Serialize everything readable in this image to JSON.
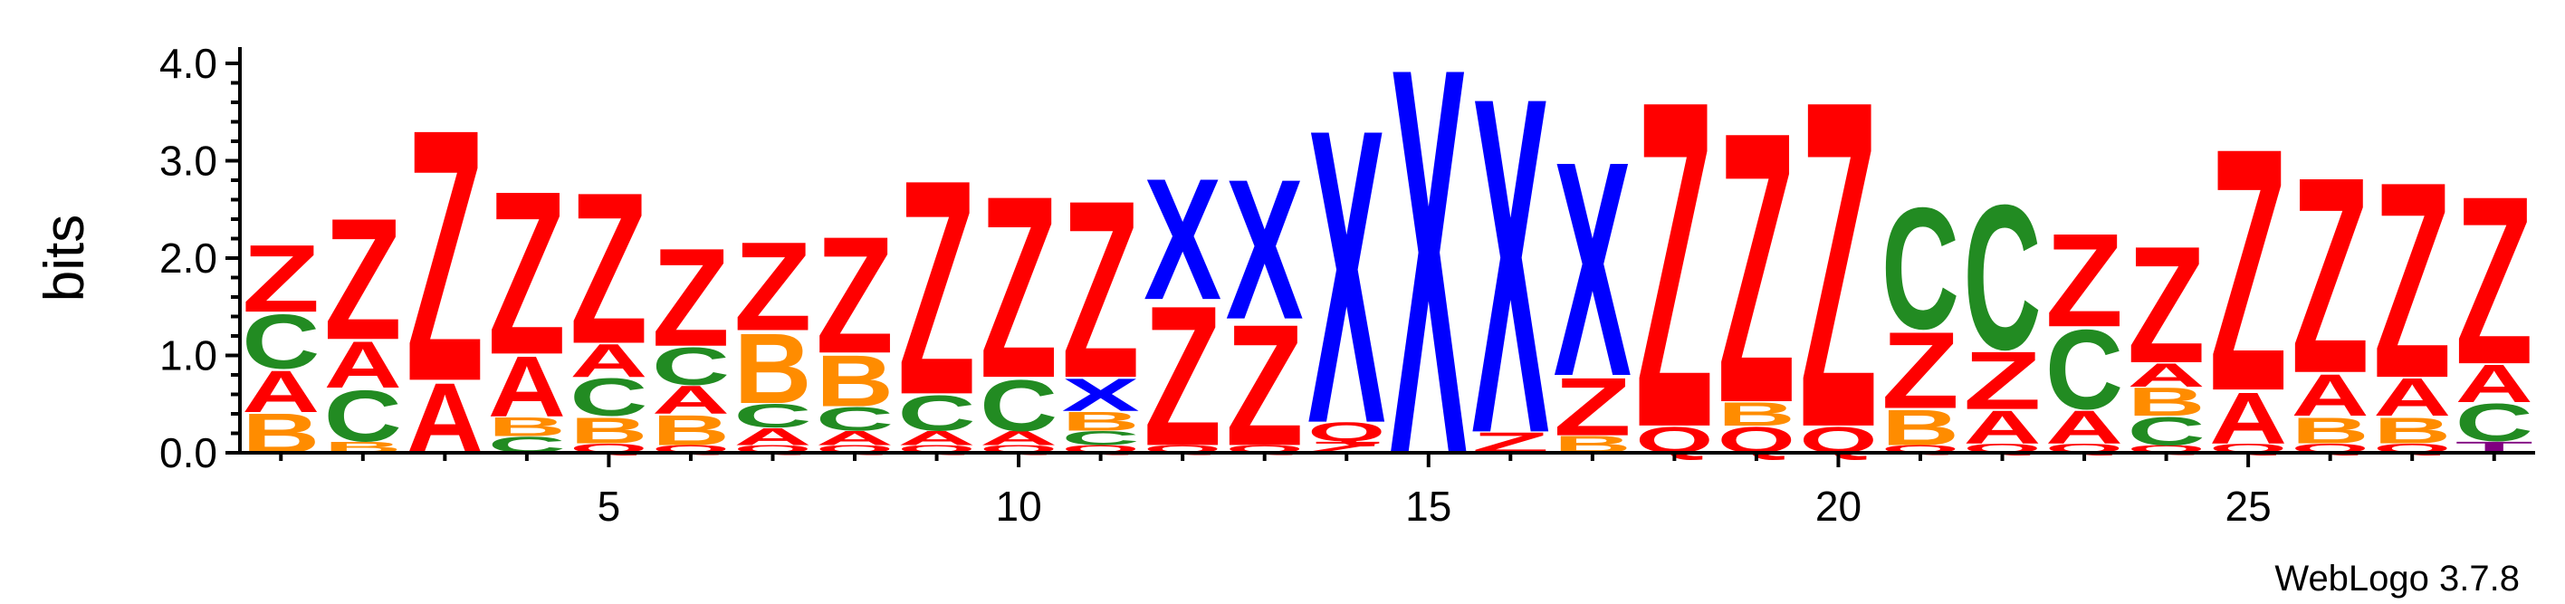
{
  "chart_data": {
    "type": "sequence-logo",
    "ylabel": "bits",
    "ylim": [
      0,
      4.0
    ],
    "ytick_labels": [
      "0.0",
      "1.0",
      "2.0",
      "3.0",
      "4.0"
    ],
    "ytick_values": [
      0,
      1,
      2,
      3,
      4
    ],
    "xlim": [
      0.5,
      28.5
    ],
    "xtick_labels": [
      "5",
      "10",
      "15",
      "20",
      "25"
    ],
    "xtick_values": [
      5,
      10,
      15,
      20,
      25
    ],
    "credit": "WebLogo 3.7.8",
    "colors": {
      "Z": "#ff0000",
      "A": "#ff0000",
      "Q": "#ff0000",
      "B": "#ff8c00",
      "C": "#228b22",
      "X": "#0000ff",
      "T": "#800080"
    },
    "positions": [
      {
        "pos": 1,
        "stack": [
          {
            "l": "B",
            "h": 0.42
          },
          {
            "l": "A",
            "h": 0.45
          },
          {
            "l": "C",
            "h": 0.58
          },
          {
            "l": "Z",
            "h": 0.72
          }
        ]
      },
      {
        "pos": 2,
        "stack": [
          {
            "l": "B",
            "h": 0.12
          },
          {
            "l": "C",
            "h": 0.55
          },
          {
            "l": "A",
            "h": 0.5
          },
          {
            "l": "Z",
            "h": 1.3
          }
        ]
      },
      {
        "pos": 3,
        "stack": [
          {
            "l": "A",
            "h": 0.75
          },
          {
            "l": "Z",
            "h": 2.7
          }
        ]
      },
      {
        "pos": 4,
        "stack": [
          {
            "l": "C",
            "h": 0.17
          },
          {
            "l": "B",
            "h": 0.2
          },
          {
            "l": "A",
            "h": 0.65
          },
          {
            "l": "Z",
            "h": 1.75
          }
        ]
      },
      {
        "pos": 5,
        "stack": [
          {
            "l": "Q",
            "h": 0.1
          },
          {
            "l": "B",
            "h": 0.28
          },
          {
            "l": "C",
            "h": 0.4
          },
          {
            "l": "A",
            "h": 0.35
          },
          {
            "l": "Z",
            "h": 1.62
          }
        ]
      },
      {
        "pos": 6,
        "stack": [
          {
            "l": "Q",
            "h": 0.08
          },
          {
            "l": "B",
            "h": 0.32
          },
          {
            "l": "A",
            "h": 0.3
          },
          {
            "l": "C",
            "h": 0.4
          },
          {
            "l": "Z",
            "h": 1.05
          }
        ]
      },
      {
        "pos": 7,
        "stack": [
          {
            "l": "Q",
            "h": 0.08
          },
          {
            "l": "A",
            "h": 0.18
          },
          {
            "l": "C",
            "h": 0.25
          },
          {
            "l": "B",
            "h": 0.75
          },
          {
            "l": "Z",
            "h": 0.95
          }
        ]
      },
      {
        "pos": 8,
        "stack": [
          {
            "l": "Q",
            "h": 0.08
          },
          {
            "l": "A",
            "h": 0.15
          },
          {
            "l": "C",
            "h": 0.25
          },
          {
            "l": "B",
            "h": 0.55
          },
          {
            "l": "Z",
            "h": 1.25
          }
        ]
      },
      {
        "pos": 9,
        "stack": [
          {
            "l": "Q",
            "h": 0.08
          },
          {
            "l": "A",
            "h": 0.15
          },
          {
            "l": "C",
            "h": 0.38
          },
          {
            "l": "Z",
            "h": 2.3
          }
        ]
      },
      {
        "pos": 10,
        "stack": [
          {
            "l": "Q",
            "h": 0.08
          },
          {
            "l": "A",
            "h": 0.15
          },
          {
            "l": "C",
            "h": 0.55
          },
          {
            "l": "Z",
            "h": 1.95
          }
        ]
      },
      {
        "pos": 11,
        "stack": [
          {
            "l": "Q",
            "h": 0.08
          },
          {
            "l": "C",
            "h": 0.15
          },
          {
            "l": "B",
            "h": 0.2
          },
          {
            "l": "X",
            "h": 0.35
          },
          {
            "l": "Z",
            "h": 1.9
          }
        ]
      },
      {
        "pos": 12,
        "stack": [
          {
            "l": "Q",
            "h": 0.08
          },
          {
            "l": "Z",
            "h": 1.5
          },
          {
            "l": "X",
            "h": 1.3
          }
        ]
      },
      {
        "pos": 13,
        "stack": [
          {
            "l": "Q",
            "h": 0.08
          },
          {
            "l": "Z",
            "h": 1.3
          },
          {
            "l": "X",
            "h": 1.5
          }
        ]
      },
      {
        "pos": 14,
        "stack": [
          {
            "l": "Z",
            "h": 0.12
          },
          {
            "l": "Q",
            "h": 0.2
          },
          {
            "l": "X",
            "h": 3.15
          }
        ]
      },
      {
        "pos": 15,
        "stack": [
          {
            "l": "X",
            "h": 4.15
          }
        ]
      },
      {
        "pos": 16,
        "stack": [
          {
            "l": "Z",
            "h": 0.22
          },
          {
            "l": "X",
            "h": 3.6
          }
        ]
      },
      {
        "pos": 17,
        "stack": [
          {
            "l": "B",
            "h": 0.18
          },
          {
            "l": "Z",
            "h": 0.62
          },
          {
            "l": "X",
            "h": 2.3
          }
        ]
      },
      {
        "pos": 18,
        "stack": [
          {
            "l": "Q",
            "h": 0.28
          },
          {
            "l": "Z",
            "h": 3.5
          }
        ]
      },
      {
        "pos": 19,
        "stack": [
          {
            "l": "Q",
            "h": 0.28
          },
          {
            "l": "B",
            "h": 0.25
          },
          {
            "l": "Z",
            "h": 2.9
          }
        ]
      },
      {
        "pos": 20,
        "stack": [
          {
            "l": "Q",
            "h": 0.28
          },
          {
            "l": "Z",
            "h": 3.5
          }
        ]
      },
      {
        "pos": 21,
        "stack": [
          {
            "l": "Q",
            "h": 0.08
          },
          {
            "l": "B",
            "h": 0.38
          },
          {
            "l": "Z",
            "h": 0.82
          },
          {
            "l": "C",
            "h": 1.3
          }
        ]
      },
      {
        "pos": 22,
        "stack": [
          {
            "l": "Q",
            "h": 0.1
          },
          {
            "l": "A",
            "h": 0.35
          },
          {
            "l": "Z",
            "h": 0.62
          },
          {
            "l": "C",
            "h": 1.55
          }
        ]
      },
      {
        "pos": 23,
        "stack": [
          {
            "l": "Q",
            "h": 0.1
          },
          {
            "l": "A",
            "h": 0.35
          },
          {
            "l": "C",
            "h": 0.85
          },
          {
            "l": "Z",
            "h": 1.0
          }
        ]
      },
      {
        "pos": 24,
        "stack": [
          {
            "l": "Q",
            "h": 0.08
          },
          {
            "l": "C",
            "h": 0.3
          },
          {
            "l": "B",
            "h": 0.3
          },
          {
            "l": "A",
            "h": 0.25
          },
          {
            "l": "Z",
            "h": 1.25
          }
        ]
      },
      {
        "pos": 25,
        "stack": [
          {
            "l": "Q",
            "h": 0.1
          },
          {
            "l": "A",
            "h": 0.55
          },
          {
            "l": "Z",
            "h": 2.6
          }
        ]
      },
      {
        "pos": 26,
        "stack": [
          {
            "l": "Q",
            "h": 0.1
          },
          {
            "l": "B",
            "h": 0.28
          },
          {
            "l": "A",
            "h": 0.45
          },
          {
            "l": "Z",
            "h": 2.1
          }
        ]
      },
      {
        "pos": 27,
        "stack": [
          {
            "l": "Q",
            "h": 0.1
          },
          {
            "l": "B",
            "h": 0.28
          },
          {
            "l": "A",
            "h": 0.4
          },
          {
            "l": "Z",
            "h": 2.1
          }
        ]
      },
      {
        "pos": 28,
        "stack": [
          {
            "l": "T",
            "h": 0.12
          },
          {
            "l": "C",
            "h": 0.4
          },
          {
            "l": "A",
            "h": 0.4
          },
          {
            "l": "Z",
            "h": 1.8
          }
        ]
      }
    ]
  }
}
